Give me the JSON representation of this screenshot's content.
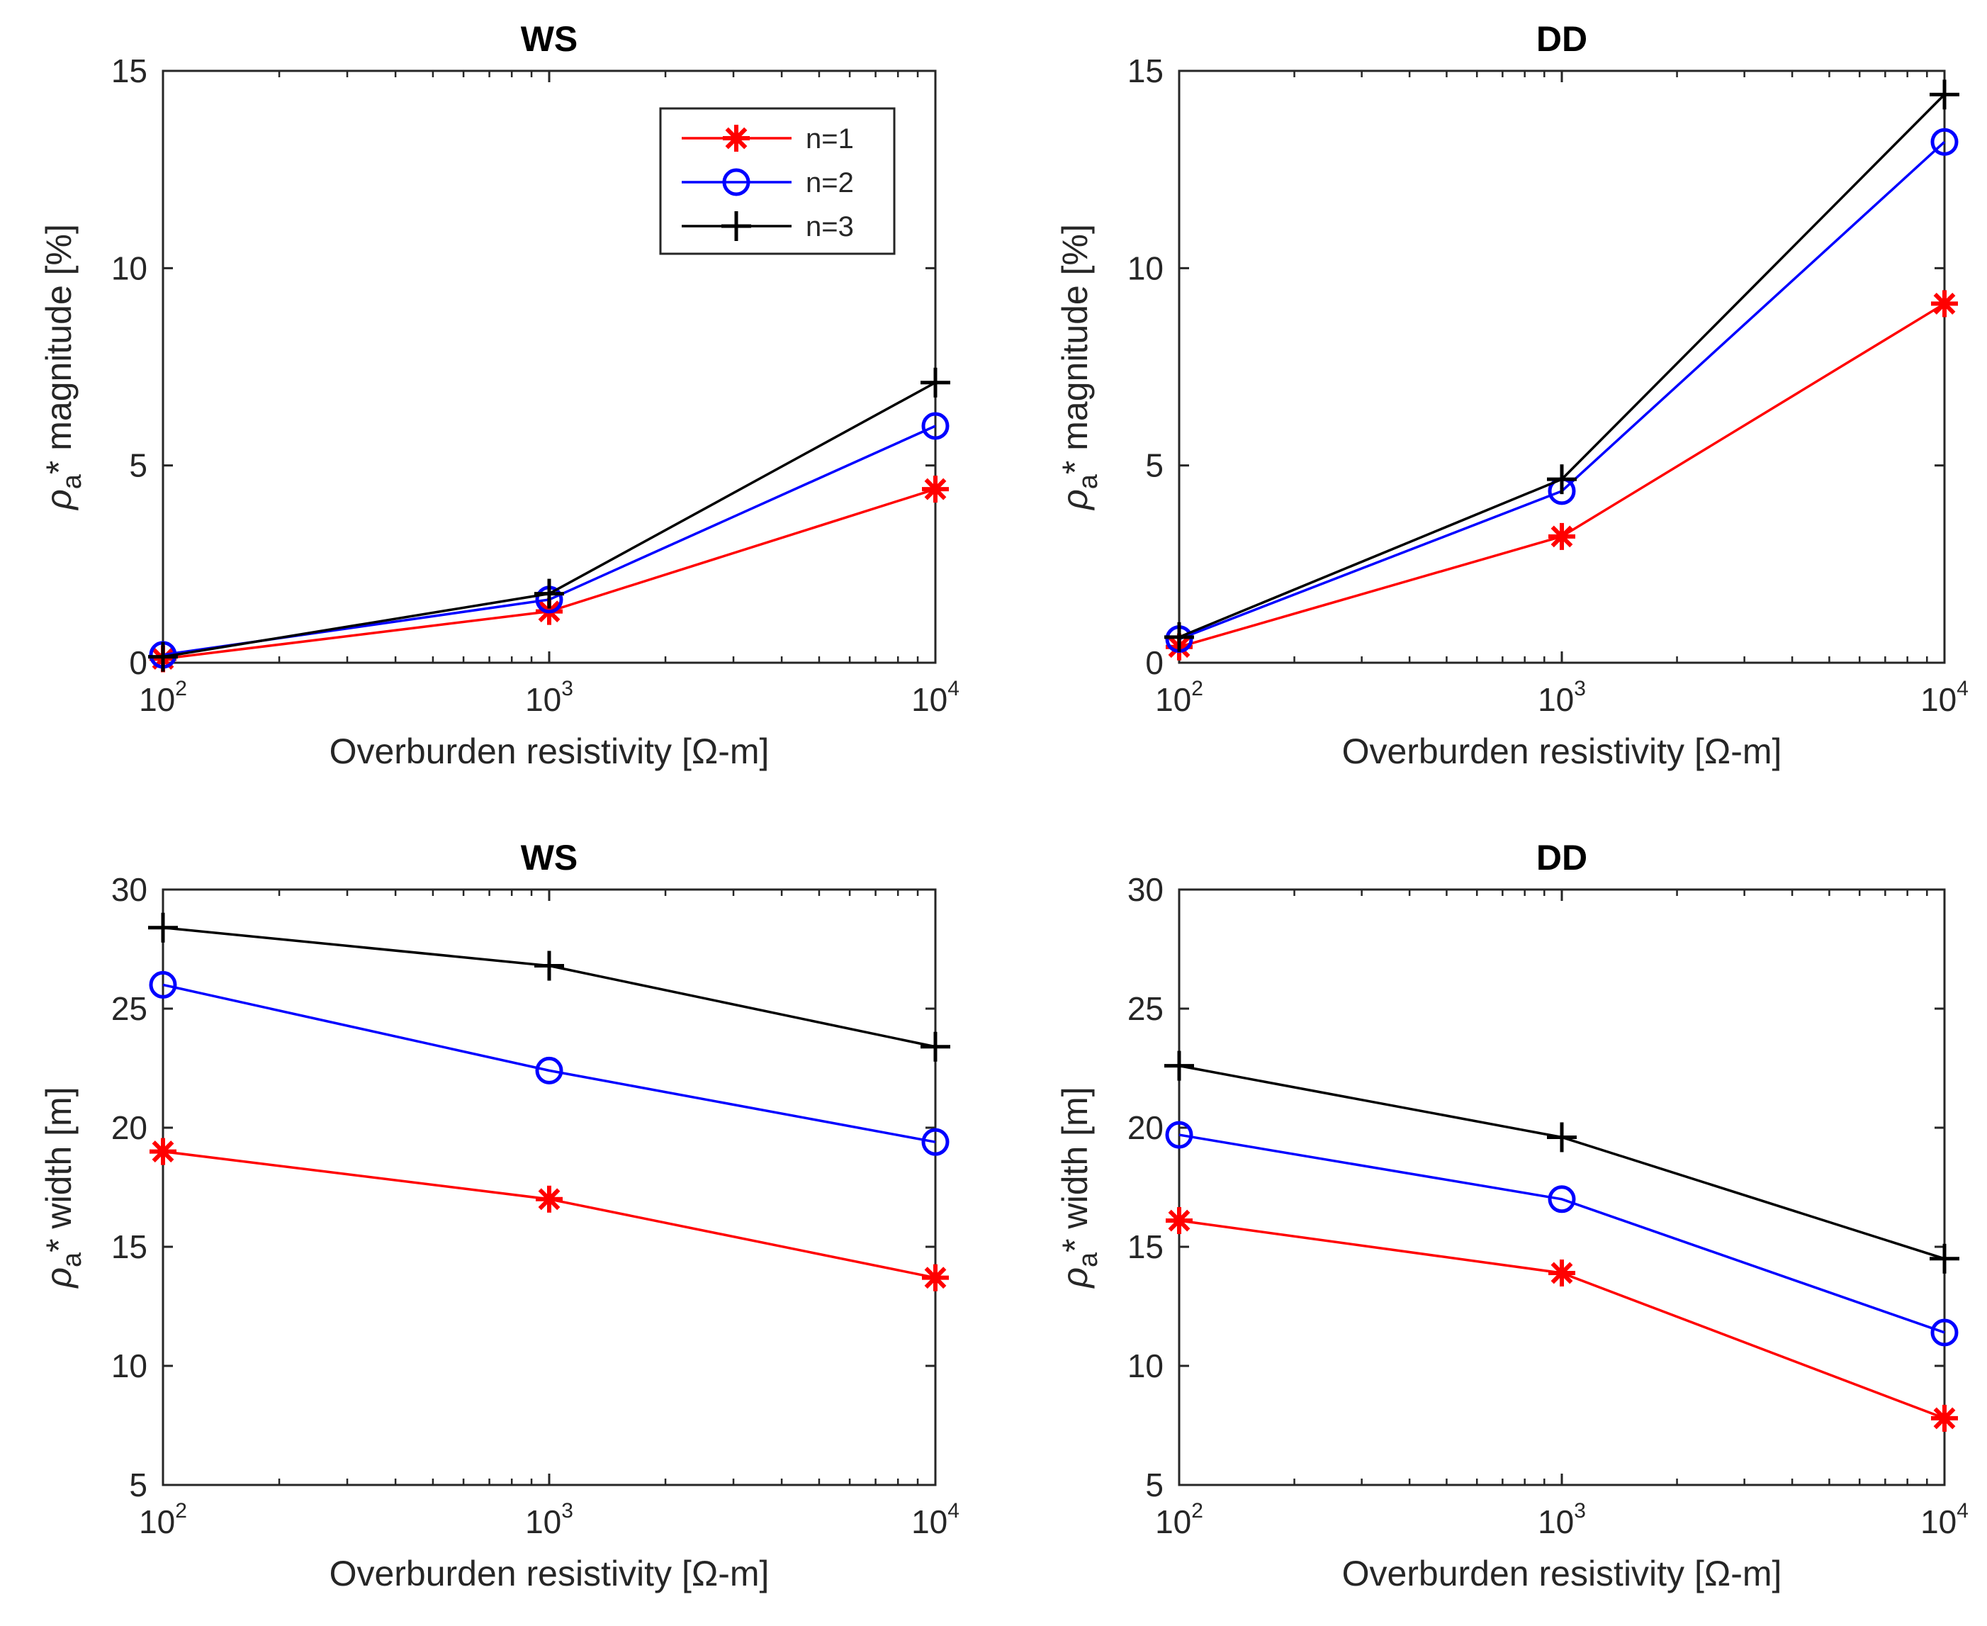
{
  "chart_data": [
    {
      "type": "line",
      "id": "ws-magnitude",
      "title": "WS",
      "xlabel": "Overburden resistivity [Ω-m]",
      "ylabel": "ρa* magnitude [%]",
      "xscale": "log",
      "x": [
        100,
        1000,
        10000
      ],
      "xticks": [
        {
          "base": "10",
          "exp": "2"
        },
        {
          "base": "10",
          "exp": "3"
        },
        {
          "base": "10",
          "exp": "4"
        }
      ],
      "ylim": [
        0,
        15
      ],
      "yticks": [
        "0",
        "5",
        "10",
        "15"
      ],
      "legend": "top-right",
      "series": [
        {
          "name": "n=1",
          "color": "#ff0000",
          "marker": "asterisk",
          "values": [
            0.1,
            1.3,
            4.4
          ]
        },
        {
          "name": "n=2",
          "color": "#0000ff",
          "marker": "circle",
          "values": [
            0.2,
            1.6,
            6.0
          ]
        },
        {
          "name": "n=3",
          "color": "#000000",
          "marker": "plus",
          "values": [
            0.15,
            1.75,
            7.1
          ]
        }
      ]
    },
    {
      "type": "line",
      "id": "dd-magnitude",
      "title": "DD",
      "xlabel": "Overburden resistivity [Ω-m]",
      "ylabel": "ρa* magnitude [%]",
      "xscale": "log",
      "x": [
        100,
        1000,
        10000
      ],
      "xticks": [
        {
          "base": "10",
          "exp": "2"
        },
        {
          "base": "10",
          "exp": "3"
        },
        {
          "base": "10",
          "exp": "4"
        }
      ],
      "ylim": [
        0,
        15
      ],
      "yticks": [
        "0",
        "5",
        "10",
        "15"
      ],
      "series": [
        {
          "name": "n=1",
          "color": "#ff0000",
          "marker": "asterisk",
          "values": [
            0.4,
            3.2,
            9.1
          ]
        },
        {
          "name": "n=2",
          "color": "#0000ff",
          "marker": "circle",
          "values": [
            0.6,
            4.35,
            13.2
          ]
        },
        {
          "name": "n=3",
          "color": "#000000",
          "marker": "plus",
          "values": [
            0.65,
            4.65,
            14.4
          ]
        }
      ]
    },
    {
      "type": "line",
      "id": "ws-width",
      "title": "WS",
      "xlabel": "Overburden resistivity [Ω-m]",
      "ylabel": "ρa* width [m]",
      "xscale": "log",
      "x": [
        100,
        1000,
        10000
      ],
      "xticks": [
        {
          "base": "10",
          "exp": "2"
        },
        {
          "base": "10",
          "exp": "3"
        },
        {
          "base": "10",
          "exp": "4"
        }
      ],
      "ylim": [
        5,
        30
      ],
      "yticks": [
        "5",
        "10",
        "15",
        "20",
        "25",
        "30"
      ],
      "series": [
        {
          "name": "n=1",
          "color": "#ff0000",
          "marker": "asterisk",
          "values": [
            19.0,
            17.0,
            13.7
          ]
        },
        {
          "name": "n=2",
          "color": "#0000ff",
          "marker": "circle",
          "values": [
            26.0,
            22.4,
            19.4
          ]
        },
        {
          "name": "n=3",
          "color": "#000000",
          "marker": "plus",
          "values": [
            28.4,
            26.8,
            23.4
          ]
        }
      ]
    },
    {
      "type": "line",
      "id": "dd-width",
      "title": "DD",
      "xlabel": "Overburden resistivity [Ω-m]",
      "ylabel": "ρa* width [m]",
      "xscale": "log",
      "x": [
        100,
        1000,
        10000
      ],
      "xticks": [
        {
          "base": "10",
          "exp": "2"
        },
        {
          "base": "10",
          "exp": "3"
        },
        {
          "base": "10",
          "exp": "4"
        }
      ],
      "ylim": [
        5,
        30
      ],
      "yticks": [
        "5",
        "10",
        "15",
        "20",
        "25",
        "30"
      ],
      "series": [
        {
          "name": "n=1",
          "color": "#ff0000",
          "marker": "asterisk",
          "values": [
            16.1,
            13.9,
            7.8
          ]
        },
        {
          "name": "n=2",
          "color": "#0000ff",
          "marker": "circle",
          "values": [
            19.7,
            17.0,
            11.4
          ]
        },
        {
          "name": "n=3",
          "color": "#000000",
          "marker": "plus",
          "values": [
            22.6,
            19.6,
            14.5
          ]
        }
      ]
    }
  ],
  "colors": {
    "axis": "#262626",
    "background": "#ffffff"
  }
}
